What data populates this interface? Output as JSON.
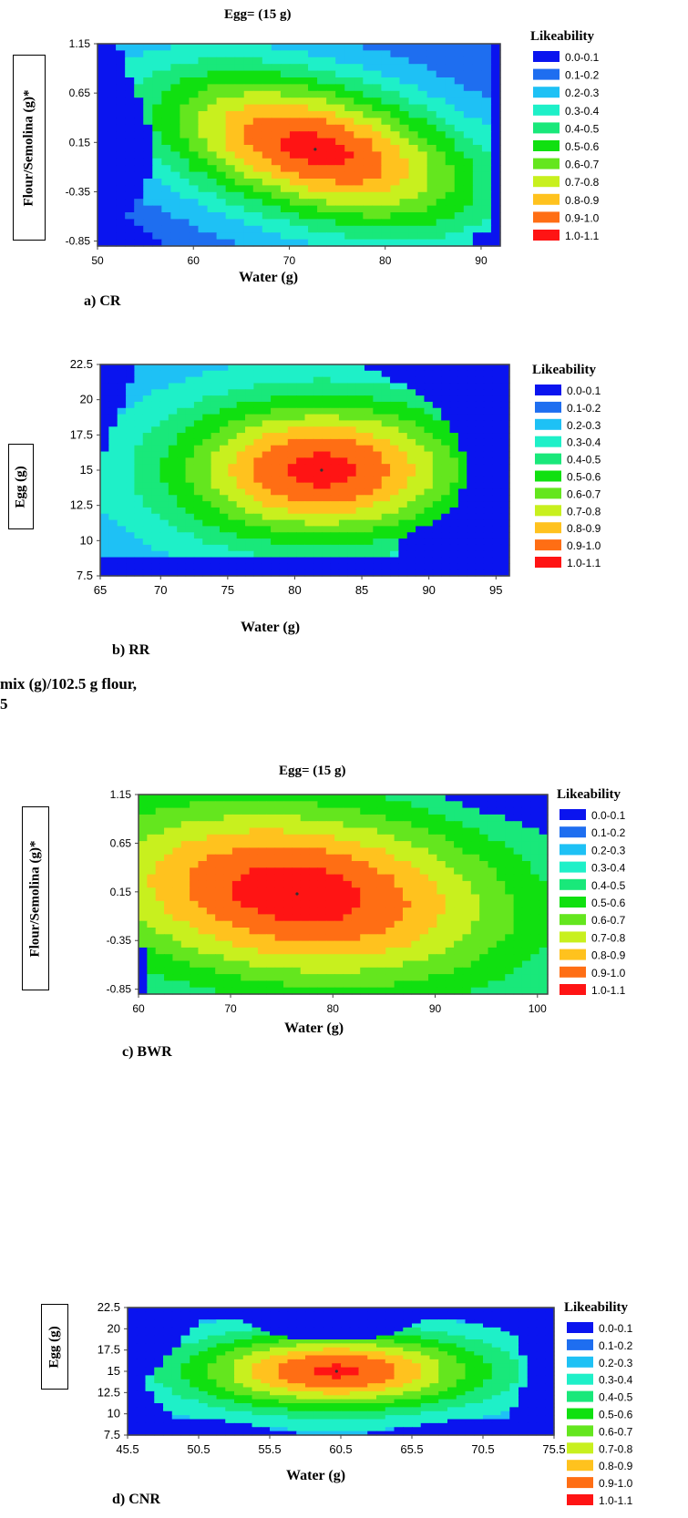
{
  "legend": {
    "title": "Likeability",
    "entries": [
      "0.0-0.1",
      "0.1-0.2",
      "0.2-0.3",
      "0.3-0.4",
      "0.4-0.5",
      "0.5-0.6",
      "0.6-0.7",
      "0.7-0.8",
      "0.8-0.9",
      "0.9-1.0",
      "1.0-1.1"
    ],
    "colors": [
      "#0a14ef",
      "#1e6ef0",
      "#1ec1f5",
      "#1ef0c8",
      "#19e87a",
      "#10e010",
      "#64e61e",
      "#c8f01e",
      "#ffc21e",
      "#ff6e14",
      "#ff1414"
    ]
  },
  "footnote": {
    "line1": "mix (g)/102.5 g flour,",
    "line2": "5"
  },
  "chart_data": [
    {
      "type": "heatmap",
      "panel_label": "a) CR",
      "title": "Egg= (15 g)",
      "xlabel": "Water (g)",
      "ylabel": "Flour/Semolina (g)*",
      "xlim": [
        50,
        92
      ],
      "ylim": [
        -0.9,
        1.15
      ],
      "xticks": [
        50,
        60,
        70,
        80,
        90
      ],
      "yticks": [
        1.15,
        0.65,
        0.15,
        -0.35,
        -0.85
      ],
      "optimum": {
        "x": 72.7,
        "y": 0.08,
        "value": 1.0
      },
      "boundary_left": [
        [
          1.15,
          52
        ],
        [
          0.65,
          54
        ],
        [
          0.15,
          56
        ],
        [
          -0.35,
          55
        ],
        [
          -0.6,
          53
        ],
        [
          -0.9,
          57
        ]
      ],
      "boundary_right": [
        [
          1.15,
          91
        ],
        [
          -0.85,
          91
        ]
      ],
      "grid": false,
      "legend_position": "right"
    },
    {
      "type": "heatmap",
      "panel_label": "b) RR",
      "xlabel": "Water (g)",
      "ylabel": "Egg (g)",
      "xlim": [
        65.5,
        96
      ],
      "ylim": [
        7.5,
        22.5
      ],
      "xticks": [
        65,
        70,
        75,
        80,
        85,
        90,
        95
      ],
      "yticks": [
        22.5,
        20,
        17.5,
        15,
        12.5,
        10,
        7.5
      ],
      "optimum": {
        "x": 82,
        "y": 15,
        "value": 1.0
      },
      "boundary_bottom": 9.0,
      "boundary_right": [
        [
          22.5,
          85
        ],
        [
          20,
          90
        ],
        [
          17.5,
          92
        ],
        [
          15,
          93
        ],
        [
          12.5,
          92
        ],
        [
          10,
          88
        ]
      ],
      "grid": false,
      "legend_position": "right"
    },
    {
      "type": "heatmap",
      "panel_label": "c) BWR",
      "title": "Egg= (15 g)",
      "xlabel": "Water (g)",
      "ylabel": "Flour/Semolina (g)*",
      "xlim": [
        61,
        101
      ],
      "ylim": [
        -0.9,
        1.15
      ],
      "xticks": [
        60,
        70,
        80,
        90,
        100
      ],
      "yticks": [
        1.15,
        0.65,
        0.15,
        -0.35,
        -0.85
      ],
      "optimum": {
        "x": 76.5,
        "y": 0.13,
        "value": 1.0
      },
      "grid": false,
      "legend_position": "right"
    },
    {
      "type": "heatmap",
      "panel_label": "d) CNR",
      "xlabel": "Water (g)",
      "ylabel": "Egg (g)",
      "xlim": [
        45.5,
        75.5
      ],
      "ylim": [
        7.5,
        22.5
      ],
      "xticks": [
        45.5,
        50.5,
        55.5,
        60.5,
        65.5,
        70.5,
        75.5
      ],
      "yticks": [
        22.5,
        20,
        17.5,
        15,
        12.5,
        10,
        7.5
      ],
      "optimum": {
        "x": 60.2,
        "y": 15,
        "value": 1.0
      },
      "grid": false,
      "legend_position": "right"
    }
  ]
}
